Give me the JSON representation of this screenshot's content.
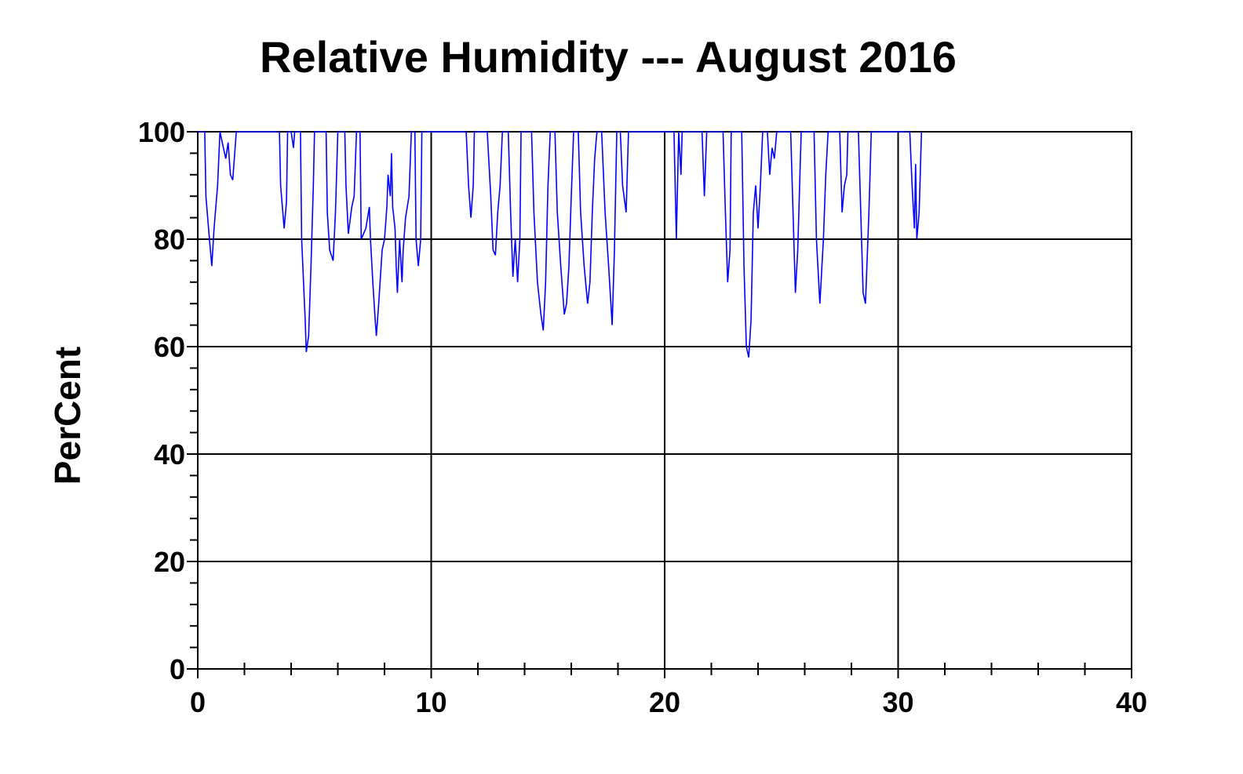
{
  "chart_data": {
    "type": "line",
    "title": "Relative Humidity --- August 2016",
    "y_label": "PerCent",
    "xlim": [
      0,
      40
    ],
    "xticks": [
      0,
      10,
      20,
      30,
      40
    ],
    "xminorticks": [
      2,
      4,
      6,
      8,
      12,
      14,
      16,
      18,
      22,
      24,
      26,
      28,
      32,
      34,
      36,
      38
    ],
    "ylim": [
      0,
      100
    ],
    "yticks": [
      0,
      20,
      40,
      60,
      80,
      100
    ],
    "yminorticks": [
      4,
      8,
      12,
      16,
      24,
      28,
      32,
      36,
      44,
      48,
      52,
      56,
      64,
      68,
      72,
      76,
      84,
      88,
      92,
      96
    ],
    "grid": true,
    "series": [
      {
        "name": "Relative Humidity",
        "color": "#0000ff",
        "x": [
          0,
          0.3,
          0.35,
          0.5,
          0.6,
          0.7,
          0.85,
          0.95,
          1.1,
          1.2,
          1.3,
          1.4,
          1.5,
          1.6,
          1.65,
          3.5,
          3.55,
          3.7,
          3.8,
          3.85,
          4.0,
          4.1,
          4.15,
          4.4,
          4.45,
          4.6,
          4.65,
          4.75,
          4.85,
          4.95,
          5.0,
          5.5,
          5.55,
          5.65,
          5.8,
          5.9,
          6.0,
          6.3,
          6.35,
          6.45,
          6.6,
          6.7,
          6.8,
          6.95,
          7.0,
          7.2,
          7.35,
          7.4,
          7.5,
          7.6,
          7.65,
          7.75,
          7.9,
          8.0,
          8.1,
          8.15,
          8.25,
          8.3,
          8.35,
          8.45,
          8.5,
          8.55,
          8.65,
          8.75,
          8.8,
          8.9,
          9.05,
          9.15,
          9.3,
          9.35,
          9.45,
          9.55,
          9.6,
          11.5,
          11.6,
          11.7,
          11.8,
          11.85,
          12.4,
          12.55,
          12.65,
          12.75,
          12.85,
          12.95,
          13.05,
          13.3,
          13.4,
          13.5,
          13.6,
          13.7,
          13.8,
          13.85,
          14.3,
          14.4,
          14.55,
          14.7,
          14.8,
          14.9,
          15.0,
          15.1,
          15.3,
          15.4,
          15.55,
          15.7,
          15.8,
          15.9,
          16.0,
          16.1,
          16.3,
          16.4,
          16.55,
          16.7,
          16.8,
          16.9,
          17.0,
          17.1,
          17.3,
          17.45,
          17.6,
          17.75,
          17.85,
          17.95,
          18.1,
          18.2,
          18.35,
          18.45,
          20.4,
          20.5,
          20.6,
          20.7,
          20.75,
          21.6,
          21.7,
          21.8,
          22.5,
          22.6,
          22.7,
          22.8,
          22.85,
          23.3,
          23.4,
          23.5,
          23.6,
          23.7,
          23.8,
          23.9,
          24.0,
          24.1,
          24.2,
          24.4,
          24.5,
          24.6,
          24.7,
          24.8,
          25.4,
          25.5,
          25.6,
          25.7,
          25.85,
          26.4,
          26.5,
          26.65,
          26.8,
          26.9,
          27.0,
          27.5,
          27.6,
          27.7,
          27.8,
          27.85,
          28.3,
          28.4,
          28.5,
          28.6,
          28.75,
          28.85,
          30.5,
          30.6,
          30.7,
          30.75,
          30.8,
          30.9,
          31.0
        ],
        "values": [
          100,
          100,
          88,
          80,
          75,
          82,
          90,
          100,
          97,
          95,
          98,
          92,
          91,
          97,
          100,
          100,
          90,
          82,
          87,
          100,
          100,
          97,
          100,
          100,
          80,
          65,
          59,
          62,
          75,
          90,
          100,
          100,
          85,
          78,
          76,
          85,
          100,
          100,
          90,
          81,
          86,
          88,
          100,
          100,
          80,
          82,
          86,
          80,
          72,
          65,
          62,
          68,
          78,
          80,
          86,
          92,
          88,
          96,
          86,
          82,
          75,
          70,
          80,
          72,
          78,
          84,
          88,
          100,
          100,
          80,
          75,
          80,
          100,
          100,
          90,
          84,
          90,
          100,
          100,
          88,
          78,
          77,
          85,
          90,
          100,
          100,
          85,
          73,
          80,
          72,
          80,
          100,
          100,
          85,
          72,
          66,
          63,
          72,
          90,
          100,
          100,
          85,
          75,
          66,
          68,
          75,
          88,
          100,
          100,
          85,
          75,
          68,
          72,
          85,
          95,
          100,
          100,
          85,
          75,
          64,
          78,
          100,
          100,
          90,
          85,
          100,
          100,
          80,
          100,
          92,
          100,
          100,
          88,
          100,
          100,
          85,
          72,
          78,
          100,
          100,
          75,
          60,
          58,
          65,
          85,
          90,
          82,
          90,
          100,
          100,
          92,
          97,
          95,
          100,
          100,
          85,
          70,
          78,
          100,
          100,
          80,
          68,
          80,
          92,
          100,
          100,
          85,
          90,
          92,
          100,
          100,
          85,
          70,
          68,
          85,
          100,
          100,
          90,
          82,
          94,
          80,
          85,
          100
        ]
      }
    ]
  }
}
